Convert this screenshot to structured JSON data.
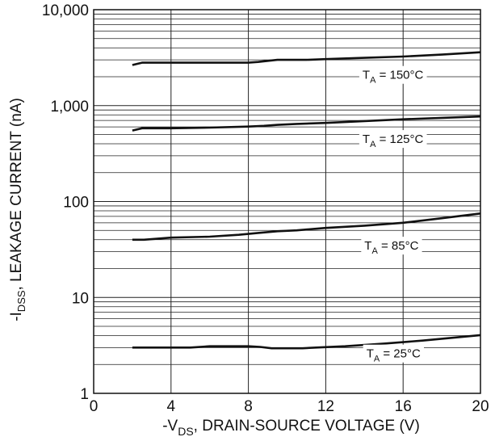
{
  "chart_data": {
    "type": "line",
    "xlabel_main": "-V",
    "xlabel_sub": "DS",
    "xlabel_rest": ", DRAIN-SOURCE VOLTAGE (V)",
    "ylabel_main": "-I",
    "ylabel_sub": "DSS",
    "ylabel_rest": ", LEAKAGE CURRENT (nA)",
    "xlim": [
      0,
      20
    ],
    "ylim": [
      1,
      10000
    ],
    "y_scale": "log",
    "grid": true,
    "x_ticks": [
      "0",
      "4",
      "8",
      "12",
      "16",
      "20"
    ],
    "x_tick_values": [
      0,
      4,
      8,
      12,
      16,
      20
    ],
    "y_ticks": [
      "1",
      "10",
      "100",
      "1,000",
      "10,000"
    ],
    "y_tick_values": [
      1,
      10,
      100,
      1000,
      10000
    ],
    "series": [
      {
        "name": "T_A = 150°C",
        "label_main": "T",
        "label_sub": "A",
        "label_rest": " = 150°C",
        "label_at": [
          13.9,
          2050
        ],
        "x": [
          2.0,
          2.5,
          4,
          6,
          8,
          8.5,
          9.5,
          11,
          12,
          14,
          16,
          18,
          20
        ],
        "y": [
          2650,
          2800,
          2800,
          2800,
          2800,
          2850,
          3000,
          3000,
          3050,
          3150,
          3250,
          3400,
          3600
        ]
      },
      {
        "name": "T_A = 125°C",
        "label_main": "T",
        "label_sub": "A",
        "label_rest": " = 125°C",
        "label_at": [
          13.9,
          440
        ],
        "x": [
          2.0,
          2.5,
          4,
          6,
          8,
          8.8,
          9.5,
          10.5,
          12,
          14,
          16,
          18,
          20
        ],
        "y": [
          550,
          580,
          580,
          590,
          605,
          615,
          630,
          645,
          660,
          690,
          720,
          745,
          770
        ]
      },
      {
        "name": "T_A = 85°C",
        "label_main": "T",
        "label_sub": "A",
        "label_rest": " = 85°C",
        "label_at": [
          14.0,
          34
        ],
        "x": [
          2.0,
          2.6,
          4,
          6,
          7.5,
          8.5,
          9.5,
          10.5,
          12,
          14,
          16,
          18,
          20
        ],
        "y": [
          40,
          40,
          42,
          43,
          45,
          47,
          49,
          50,
          53,
          56,
          60,
          67,
          75
        ]
      },
      {
        "name": "T_A = 25°C",
        "label_main": "T",
        "label_sub": "A",
        "label_rest": " = 25°C",
        "label_at": [
          14.1,
          2.55
        ],
        "x": [
          2.0,
          5,
          6,
          8,
          8.6,
          9.2,
          10.8,
          11.5,
          13,
          15,
          17,
          20
        ],
        "y": [
          3.0,
          3.0,
          3.1,
          3.1,
          3.05,
          2.95,
          2.95,
          3.0,
          3.1,
          3.3,
          3.55,
          4.05
        ]
      }
    ]
  }
}
